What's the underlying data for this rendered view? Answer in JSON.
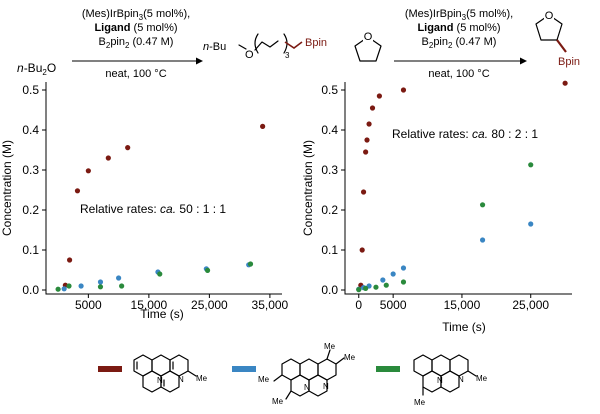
{
  "colors": {
    "c1": "#7b1a12",
    "c2": "#3a86c3",
    "c3": "#2a8a3c",
    "bpin": "#7b1a12"
  },
  "schemes": [
    {
      "catalyst_pre": "(Mes)IrBpin",
      "catalyst_sub": "3",
      "catalyst_post": "(5 mol%),",
      "ligand": "Ligand",
      "ligand_post": " (5 mol%)",
      "boron_pre": "B",
      "boron_sub1": "2",
      "boron_mid": "pin",
      "boron_sub2": "2",
      "boron_post": " (0.47 M)",
      "conditions": "neat, 100 °C",
      "substrate_pre": "n",
      "substrate_main": "-Bu",
      "substrate_sub": "2",
      "substrate_post": "O",
      "product_pre": "n",
      "product_main": "-Bu",
      "product_o": "O",
      "product_sub": "3",
      "product_bpin": "Bpin"
    },
    {
      "catalyst_pre": "(Mes)IrBpin",
      "catalyst_sub": "3",
      "catalyst_post": "(5 mol%),",
      "ligand": "Ligand",
      "ligand_post": " (5 mol%)",
      "boron_pre": "B",
      "boron_sub1": "2",
      "boron_mid": "pin",
      "boron_sub2": "2",
      "boron_post": " (0.47 M)",
      "conditions": "neat, 100 °C",
      "substrate_o": "O",
      "product_o": "O",
      "product_bpin": "Bpin"
    }
  ],
  "chart_data": [
    {
      "type": "scatter",
      "xlabel": "Time (s)",
      "ylabel": "Concentration (M)",
      "xlim": [
        -2000,
        37000
      ],
      "ylim": [
        -0.01,
        0.52
      ],
      "xticks": [
        5000,
        15000,
        25000,
        35000
      ],
      "xtick_labels": [
        "5000",
        "15,000",
        "25,000",
        "35,000"
      ],
      "yticks": [
        0.0,
        0.1,
        0.2,
        0.3,
        0.4,
        0.5
      ],
      "ytick_labels": [
        "0.0",
        "0.1",
        "0.2",
        "0.3",
        "0.4",
        "0.5"
      ],
      "annotation_pre": "Relative rates: ",
      "annotation_em": "ca.",
      "annotation_post": " 50 : 1 : 1",
      "series": [
        {
          "color": "#7b1a12",
          "points": [
            [
              1200,
              0.012
            ],
            [
              1900,
              0.075
            ],
            [
              3200,
              0.248
            ],
            [
              5000,
              0.298
            ],
            [
              8300,
              0.33
            ],
            [
              11500,
              0.356
            ],
            [
              33800,
              0.409
            ]
          ]
        },
        {
          "color": "#3a86c3",
          "points": [
            [
              1000,
              0.003
            ],
            [
              3800,
              0.01
            ],
            [
              7000,
              0.02
            ],
            [
              10000,
              0.03
            ],
            [
              16500,
              0.045
            ],
            [
              24500,
              0.053
            ],
            [
              31500,
              0.063
            ]
          ]
        },
        {
          "color": "#2a8a3c",
          "points": [
            [
              0,
              0.002
            ],
            [
              1800,
              0.01
            ],
            [
              7000,
              0.008
            ],
            [
              10500,
              0.01
            ],
            [
              16800,
              0.04
            ],
            [
              24700,
              0.049
            ],
            [
              31800,
              0.065
            ]
          ]
        }
      ]
    },
    {
      "type": "scatter",
      "xlabel": "Time (s)",
      "ylabel": "Concentration (M)",
      "xlim": [
        -2000,
        31000
      ],
      "ylim": [
        -0.01,
        0.52
      ],
      "xticks": [
        0,
        5000,
        15000,
        25000
      ],
      "xtick_labels": [
        "0",
        "5000",
        "15,000",
        "25,000"
      ],
      "yticks": [
        0.0,
        0.1,
        0.2,
        0.3,
        0.4,
        0.5
      ],
      "ytick_labels": [
        "0.0",
        "0.1",
        "0.2",
        "0.3",
        "0.4",
        "0.5"
      ],
      "annotation_pre": "Relative rates: ",
      "annotation_em": "ca.",
      "annotation_post": " 80 : 2 : 1",
      "series": [
        {
          "color": "#7b1a12",
          "points": [
            [
              300,
              0.012
            ],
            [
              500,
              0.1
            ],
            [
              700,
              0.245
            ],
            [
              1000,
              0.345
            ],
            [
              1200,
              0.375
            ],
            [
              1500,
              0.415
            ],
            [
              2000,
              0.455
            ],
            [
              3000,
              0.485
            ],
            [
              6500,
              0.5
            ],
            [
              30000,
              0.517
            ]
          ]
        },
        {
          "color": "#3a86c3",
          "points": [
            [
              0,
              0.002
            ],
            [
              700,
              0.006
            ],
            [
              1500,
              0.01
            ],
            [
              3500,
              0.025
            ],
            [
              5000,
              0.04
            ],
            [
              6500,
              0.055
            ],
            [
              18000,
              0.125
            ],
            [
              25000,
              0.165
            ]
          ]
        },
        {
          "color": "#2a8a3c",
          "points": [
            [
              0,
              0.001
            ],
            [
              1000,
              0.004
            ],
            [
              2500,
              0.007
            ],
            [
              4000,
              0.012
            ],
            [
              6500,
              0.02
            ],
            [
              18000,
              0.213
            ],
            [
              25000,
              0.313
            ]
          ]
        }
      ]
    }
  ]
}
